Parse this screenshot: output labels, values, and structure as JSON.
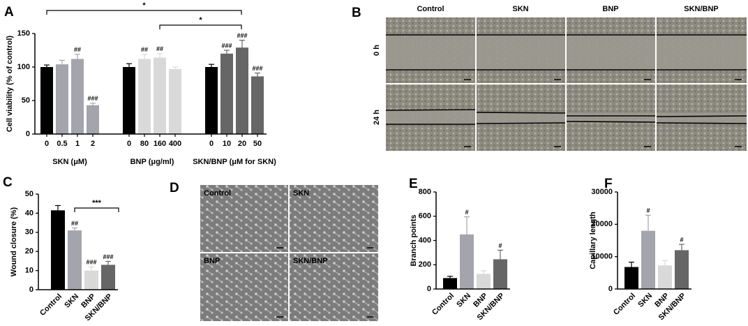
{
  "chart_data": [
    {
      "type": "bar",
      "panel": "A",
      "ylabel": "Cell viability (% of control)",
      "ylim": [
        0,
        150
      ],
      "yticks": [
        0,
        50,
        100,
        150
      ],
      "significance": [
        "*",
        "*"
      ],
      "groups": [
        {
          "label": "SKN (μM)",
          "categories": [
            "0",
            "0.5",
            "1",
            "2"
          ],
          "values": [
            100,
            104,
            112,
            43
          ],
          "errors": [
            3,
            6,
            7,
            3
          ],
          "colors": [
            "#000000",
            "#a4a4ad",
            "#a4a4ad",
            "#a4a4ad"
          ],
          "annotations": [
            null,
            null,
            "##",
            "###"
          ]
        },
        {
          "label": "BNP (μg/ml)",
          "categories": [
            "0",
            "80",
            "160",
            "400"
          ],
          "values": [
            100,
            112,
            114,
            97
          ],
          "errors": [
            5,
            7,
            6,
            3
          ],
          "colors": [
            "#000000",
            "#d9d9d9",
            "#d9d9d9",
            "#d9d9d9"
          ],
          "annotations": [
            null,
            "##",
            "##",
            null
          ]
        },
        {
          "label": "SKN/BNP (μM for SKN)",
          "categories": [
            "0",
            "10",
            "20",
            "50"
          ],
          "values": [
            100,
            120,
            129,
            86
          ],
          "errors": [
            4,
            5,
            11,
            5
          ],
          "colors": [
            "#000000",
            "#666666",
            "#666666",
            "#666666"
          ],
          "annotations": [
            null,
            "###",
            "###",
            "###"
          ]
        }
      ]
    },
    {
      "type": "bar",
      "panel": "C",
      "ylabel": "Wound closure (%)",
      "ylim": [
        0,
        50
      ],
      "yticks": [
        0,
        10,
        20,
        30,
        40,
        50
      ],
      "significance": [
        "***"
      ],
      "groups": [
        {
          "categories": [
            "Control",
            "SKN",
            "BNP",
            "SKN/BNP"
          ],
          "values": [
            41.5,
            31,
            10,
            13
          ],
          "errors": [
            2.5,
            1.3,
            2,
            1.8
          ],
          "colors": [
            "#000000",
            "#a4a4ad",
            "#d9d9d9",
            "#666666"
          ],
          "annotations": [
            null,
            "##",
            "###",
            "###"
          ]
        }
      ]
    },
    {
      "type": "bar",
      "panel": "E",
      "ylabel": "Branch points",
      "ylim": [
        0,
        800
      ],
      "yticks": [
        0,
        200,
        400,
        600,
        800
      ],
      "groups": [
        {
          "categories": [
            "Control",
            "SKN",
            "BNP",
            "SKN/BNP"
          ],
          "values": [
            90,
            450,
            125,
            245
          ],
          "errors": [
            15,
            145,
            25,
            75
          ],
          "colors": [
            "#000000",
            "#a4a4ad",
            "#d9d9d9",
            "#666666"
          ],
          "annotations": [
            null,
            "#",
            null,
            "#"
          ]
        }
      ]
    },
    {
      "type": "bar",
      "panel": "F",
      "ylabel": "Capillary length",
      "ylim": [
        0,
        30000
      ],
      "yticks": [
        0,
        10000,
        20000,
        30000
      ],
      "groups": [
        {
          "categories": [
            "Control",
            "SKN",
            "BNP",
            "SKN/BNP"
          ],
          "values": [
            6800,
            18000,
            7300,
            12000
          ],
          "errors": [
            1500,
            4800,
            1500,
            1800
          ],
          "colors": [
            "#000000",
            "#a4a4ad",
            "#d9d9d9",
            "#666666"
          ],
          "annotations": [
            null,
            "#",
            null,
            "#"
          ]
        }
      ]
    }
  ],
  "panel_B": {
    "label": "B",
    "columns": [
      "Control",
      "SKN",
      "BNP",
      "SKN/BNP"
    ],
    "rows": [
      "0 h",
      "24 h"
    ]
  },
  "panel_D": {
    "label": "D",
    "quadrants": [
      "Control",
      "SKN",
      "BNP",
      "SKN/BNP"
    ]
  }
}
